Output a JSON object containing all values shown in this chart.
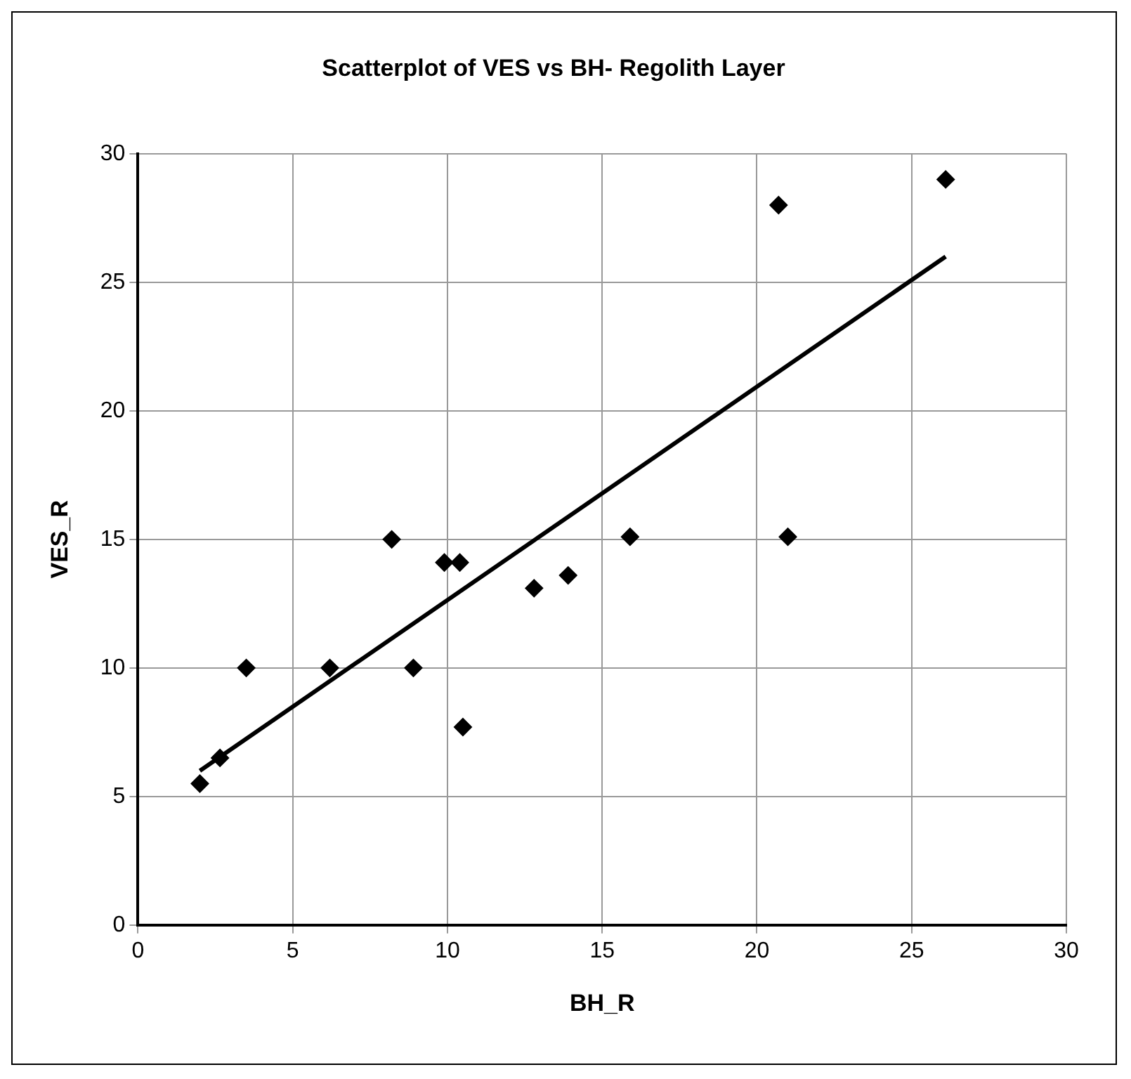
{
  "chart_data": {
    "type": "scatter",
    "title": "Scatterplot of VES vs BH- Regolith Layer",
    "xlabel": "BH_R",
    "ylabel": "VES_R",
    "xlim": [
      0,
      30
    ],
    "xticks": [
      0,
      5,
      10,
      15,
      20,
      25,
      30
    ],
    "ylim": [
      0,
      30
    ],
    "yticks": [
      0,
      5,
      10,
      15,
      20,
      25,
      30
    ],
    "grid": true,
    "legend": false,
    "marker": "diamond",
    "series": [
      {
        "color": "#000000",
        "x": [
          2.0,
          2.65,
          3.5,
          6.2,
          8.2,
          8.9,
          9.9,
          10.4,
          10.5,
          12.8,
          13.9,
          15.9,
          21.0,
          20.7,
          26.1
        ],
        "values": [
          5.5,
          6.5,
          10,
          10,
          15,
          10,
          14.1,
          14.1,
          7.7,
          13.1,
          13.6,
          15.1,
          15.1,
          28,
          29
        ]
      },
      {
        "type": "line",
        "color": "#000000",
        "marker": "none",
        "x": [
          2.0,
          26.1
        ],
        "values": [
          6.0,
          26.0
        ]
      }
    ]
  }
}
